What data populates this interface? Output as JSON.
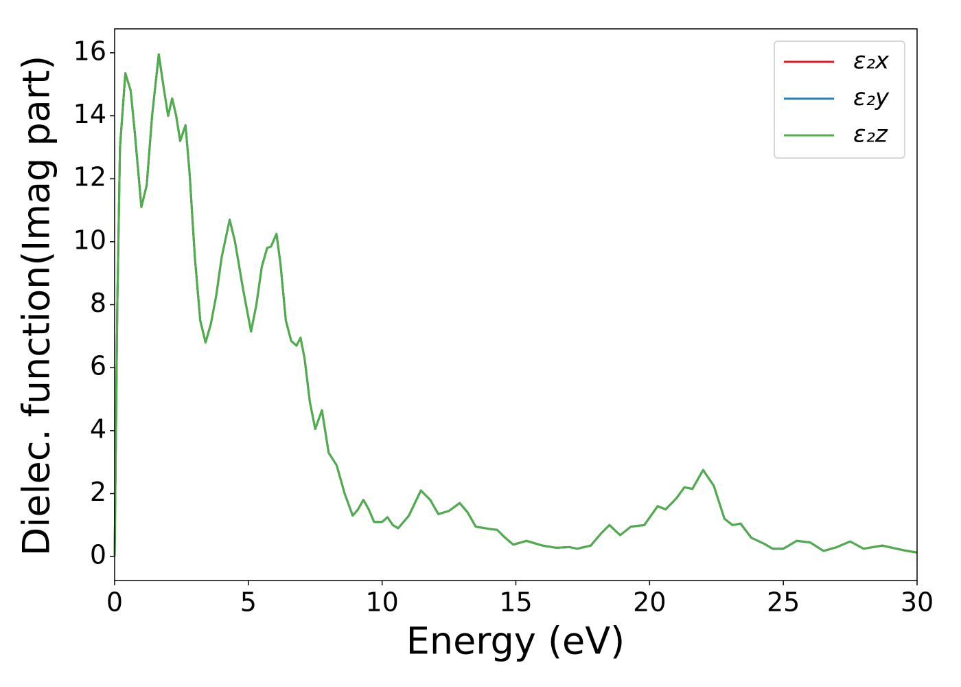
{
  "chart_data": {
    "type": "line",
    "xlabel": "Energy (eV)",
    "ylabel": "Dielec. function(Imag part)",
    "x": [
      0,
      0.1,
      0.2,
      0.4,
      0.6,
      0.75,
      1.0,
      1.2,
      1.4,
      1.65,
      1.85,
      2.0,
      2.15,
      2.3,
      2.45,
      2.65,
      2.8,
      3.0,
      3.2,
      3.4,
      3.6,
      3.8,
      4.0,
      4.3,
      4.5,
      4.8,
      5.1,
      5.3,
      5.5,
      5.7,
      5.85,
      6.05,
      6.2,
      6.4,
      6.6,
      6.8,
      6.95,
      7.1,
      7.3,
      7.5,
      7.75,
      8.0,
      8.3,
      8.6,
      8.9,
      9.1,
      9.3,
      9.5,
      9.7,
      10.0,
      10.2,
      10.4,
      10.6,
      11.0,
      11.45,
      11.8,
      12.1,
      12.5,
      12.9,
      13.2,
      13.5,
      14.0,
      14.3,
      14.6,
      14.9,
      15.4,
      16.0,
      16.5,
      17.0,
      17.3,
      17.8,
      18.2,
      18.5,
      18.9,
      19.3,
      19.8,
      20.3,
      20.6,
      21.0,
      21.3,
      21.6,
      22.0,
      22.4,
      22.8,
      23.1,
      23.4,
      23.8,
      24.3,
      24.6,
      25.0,
      25.5,
      26.0,
      26.5,
      27.0,
      27.5,
      28.0,
      28.7,
      29.5,
      30.0
    ],
    "series": [
      {
        "name": "ε₂x",
        "color": "#e41a1c",
        "values": [
          0,
          8,
          13,
          15.35,
          14.8,
          13.5,
          11.1,
          11.8,
          14,
          15.95,
          14.8,
          14.0,
          14.55,
          14.0,
          13.2,
          13.7,
          12.2,
          9.5,
          7.5,
          6.8,
          7.4,
          8.3,
          9.5,
          10.7,
          10.0,
          8.5,
          7.15,
          8.0,
          9.2,
          9.8,
          9.85,
          10.25,
          9.3,
          7.5,
          6.85,
          6.7,
          6.95,
          6.3,
          4.9,
          4.05,
          4.65,
          3.3,
          2.9,
          2.0,
          1.3,
          1.5,
          1.8,
          1.5,
          1.1,
          1.1,
          1.25,
          1.0,
          0.9,
          1.3,
          2.1,
          1.8,
          1.35,
          1.45,
          1.7,
          1.4,
          0.95,
          0.88,
          0.85,
          0.6,
          0.38,
          0.5,
          0.35,
          0.28,
          0.3,
          0.25,
          0.35,
          0.75,
          1.0,
          0.68,
          0.95,
          1.0,
          1.6,
          1.5,
          1.85,
          2.2,
          2.15,
          2.75,
          2.25,
          1.2,
          1.0,
          1.05,
          0.6,
          0.4,
          0.25,
          0.25,
          0.5,
          0.45,
          0.18,
          0.3,
          0.48,
          0.25,
          0.35,
          0.2,
          0.13
        ]
      },
      {
        "name": "ε₂y",
        "color": "#377eb8",
        "values": [
          0,
          8,
          13,
          15.35,
          14.8,
          13.5,
          11.1,
          11.8,
          14,
          15.95,
          14.8,
          14.0,
          14.55,
          14.0,
          13.2,
          13.7,
          12.2,
          9.5,
          7.5,
          6.8,
          7.4,
          8.3,
          9.5,
          10.7,
          10.0,
          8.5,
          7.15,
          8.0,
          9.2,
          9.8,
          9.85,
          10.25,
          9.3,
          7.5,
          6.85,
          6.7,
          6.95,
          6.3,
          4.9,
          4.05,
          4.65,
          3.3,
          2.9,
          2.0,
          1.3,
          1.5,
          1.8,
          1.5,
          1.1,
          1.1,
          1.25,
          1.0,
          0.9,
          1.3,
          2.1,
          1.8,
          1.35,
          1.45,
          1.7,
          1.4,
          0.95,
          0.88,
          0.85,
          0.6,
          0.38,
          0.5,
          0.35,
          0.28,
          0.3,
          0.25,
          0.35,
          0.75,
          1.0,
          0.68,
          0.95,
          1.0,
          1.6,
          1.5,
          1.85,
          2.2,
          2.15,
          2.75,
          2.25,
          1.2,
          1.0,
          1.05,
          0.6,
          0.4,
          0.25,
          0.25,
          0.5,
          0.45,
          0.18,
          0.3,
          0.48,
          0.25,
          0.35,
          0.2,
          0.13
        ]
      },
      {
        "name": "ε₂z",
        "color": "#4daf4a",
        "values": [
          0,
          8,
          13,
          15.35,
          14.8,
          13.5,
          11.1,
          11.8,
          14,
          15.95,
          14.8,
          14.0,
          14.55,
          14.0,
          13.2,
          13.7,
          12.2,
          9.5,
          7.5,
          6.8,
          7.4,
          8.3,
          9.5,
          10.7,
          10.0,
          8.5,
          7.15,
          8.0,
          9.2,
          9.8,
          9.85,
          10.25,
          9.3,
          7.5,
          6.85,
          6.7,
          6.95,
          6.3,
          4.9,
          4.05,
          4.65,
          3.3,
          2.9,
          2.0,
          1.3,
          1.5,
          1.8,
          1.5,
          1.1,
          1.1,
          1.25,
          1.0,
          0.9,
          1.3,
          2.1,
          1.8,
          1.35,
          1.45,
          1.7,
          1.4,
          0.95,
          0.88,
          0.85,
          0.6,
          0.38,
          0.5,
          0.35,
          0.28,
          0.3,
          0.25,
          0.35,
          0.75,
          1.0,
          0.68,
          0.95,
          1.0,
          1.6,
          1.5,
          1.85,
          2.2,
          2.15,
          2.75,
          2.25,
          1.2,
          1.0,
          1.05,
          0.6,
          0.4,
          0.25,
          0.25,
          0.5,
          0.45,
          0.18,
          0.3,
          0.48,
          0.25,
          0.35,
          0.2,
          0.13
        ]
      }
    ],
    "xlim": [
      0,
      30
    ],
    "xticks": [
      0,
      5,
      10,
      15,
      20,
      25,
      30
    ],
    "ylim": [
      -0.76,
      16.76
    ],
    "yticks": [
      0,
      2,
      4,
      6,
      8,
      10,
      12,
      14,
      16
    ],
    "grid": false,
    "legend": "upper right"
  }
}
